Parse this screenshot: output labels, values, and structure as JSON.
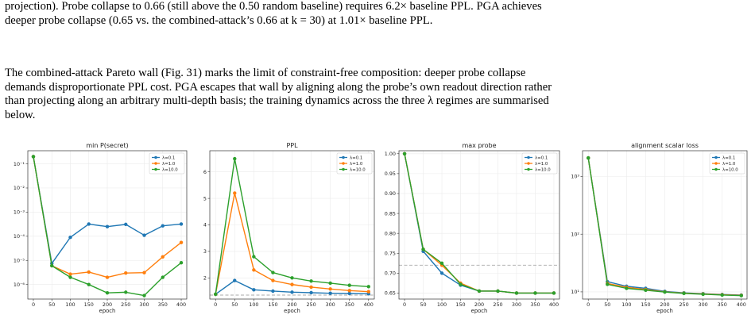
{
  "paragraph1": {
    "line1": "projection). Probe collapse to 0.66 (still above the 0.50 random baseline) requires 6.2× baseline PPL. PGA achieves",
    "line2": "deeper probe collapse (0.65 vs. the combined-attack’s 0.66 at k = 30) at 1.01× baseline PPL."
  },
  "paragraph2": {
    "line1": "The combined-attack Pareto wall (Fig. 31) marks the limit of constraint-free composition: deeper probe collapse",
    "line2": "demands disproportionate PPL cost. PGA escapes that wall by aligning along the probe’s own readout direction rather",
    "line3": "than projecting along an arbitrary multi-depth basis; the training dynamics across the three λ regimes are summarised",
    "line4": "below."
  },
  "colors": {
    "lambda_0_1": "#1f77b4",
    "lambda_1_0": "#ff7f0e",
    "lambda_10_0": "#2ca02c",
    "threshold": "#aaaaaa"
  },
  "chart_data": [
    {
      "type": "line",
      "title": "min P(secret)",
      "xlabel": "epoch",
      "ylabel": "",
      "yscale": "log",
      "xlim": [
        -15,
        415
      ],
      "ylim": [
        2.5e-07,
        0.35
      ],
      "xticks": [
        0,
        50,
        100,
        150,
        200,
        250,
        300,
        350,
        400
      ],
      "yticks": [
        1e-06,
        1e-05,
        0.0001,
        0.001,
        0.01,
        0.1
      ],
      "ytick_labels": [
        "10⁻⁶",
        "10⁻⁵",
        "10⁻⁴",
        "10⁻³",
        "10⁻²",
        "10⁻¹"
      ],
      "legend": "top-right",
      "grid": true,
      "x": [
        0,
        50,
        100,
        150,
        200,
        250,
        300,
        350,
        400
      ],
      "series": [
        {
          "name": "λ=0.1",
          "values": [
            0.2,
            7.5e-06,
            9e-05,
            0.00032,
            0.00025,
            0.00031,
            0.00011,
            0.00027,
            0.00032
          ]
        },
        {
          "name": "λ=1.0",
          "values": [
            0.2,
            6e-06,
            2.7e-06,
            3.3e-06,
            2e-06,
            3e-06,
            3.1e-06,
            1.4e-05,
            5.5e-05
          ]
        },
        {
          "name": "λ=10.0",
          "values": [
            0.2,
            6e-06,
            2e-06,
            1e-06,
            4.5e-07,
            4.8e-07,
            3.5e-07,
            2e-06,
            8e-06
          ]
        }
      ]
    },
    {
      "type": "line",
      "title": "PPL",
      "xlabel": "epoch",
      "ylabel": "",
      "yscale": "linear",
      "xlim": [
        -15,
        415
      ],
      "ylim": [
        1.2,
        6.8
      ],
      "xticks": [
        0,
        50,
        100,
        150,
        200,
        250,
        300,
        350,
        400
      ],
      "yticks": [
        2,
        3,
        4,
        5,
        6
      ],
      "ytick_labels": [
        "2",
        "3",
        "4",
        "5",
        "6"
      ],
      "hline": 1.35,
      "legend": "top-right",
      "grid": true,
      "x": [
        0,
        50,
        100,
        150,
        200,
        250,
        300,
        350,
        400
      ],
      "series": [
        {
          "name": "λ=0.1",
          "values": [
            1.38,
            1.9,
            1.55,
            1.5,
            1.46,
            1.44,
            1.42,
            1.41,
            1.4
          ]
        },
        {
          "name": "λ=1.0",
          "values": [
            1.38,
            5.2,
            2.3,
            1.9,
            1.75,
            1.65,
            1.58,
            1.52,
            1.48
          ]
        },
        {
          "name": "λ=10.0",
          "values": [
            1.38,
            6.5,
            2.8,
            2.2,
            2.0,
            1.88,
            1.8,
            1.72,
            1.67
          ]
        }
      ]
    },
    {
      "type": "line",
      "title": "max probe",
      "xlabel": "epoch",
      "ylabel": "",
      "yscale": "linear",
      "xlim": [
        -15,
        415
      ],
      "ylim": [
        0.635,
        1.0075
      ],
      "xticks": [
        0,
        50,
        100,
        150,
        200,
        250,
        300,
        350,
        400
      ],
      "yticks": [
        0.65,
        0.7,
        0.75,
        0.8,
        0.85,
        0.9,
        0.95,
        1.0
      ],
      "ytick_labels": [
        "0.65",
        "0.70",
        "0.75",
        "0.80",
        "0.85",
        "0.90",
        "0.95",
        "1.00"
      ],
      "hline": 0.72,
      "legend": "top-right",
      "grid": true,
      "x": [
        0,
        50,
        100,
        150,
        200,
        250,
        300,
        350,
        400
      ],
      "series": [
        {
          "name": "λ=0.1",
          "values": [
            1.0,
            0.755,
            0.7,
            0.67,
            0.655,
            0.655,
            0.65,
            0.65,
            0.65
          ]
        },
        {
          "name": "λ=1.0",
          "values": [
            1.0,
            0.76,
            0.72,
            0.675,
            0.655,
            0.655,
            0.65,
            0.65,
            0.65
          ]
        },
        {
          "name": "λ=10.0",
          "values": [
            1.0,
            0.76,
            0.725,
            0.672,
            0.655,
            0.655,
            0.65,
            0.65,
            0.65
          ]
        }
      ]
    },
    {
      "type": "line",
      "title": "alignment scalar loss",
      "xlabel": "epoch",
      "ylabel": "",
      "yscale": "log",
      "xlim": [
        -15,
        415
      ],
      "ylim": [
        7.5,
        2800
      ],
      "xticks": [
        0,
        50,
        100,
        150,
        200,
        250,
        300,
        350,
        400
      ],
      "yticks": [
        10,
        100,
        1000
      ],
      "ytick_labels": [
        "10¹",
        "10²",
        "10³"
      ],
      "legend": "top-right",
      "grid": true,
      "x": [
        0,
        50,
        100,
        150,
        200,
        250,
        300,
        350,
        400
      ],
      "series": [
        {
          "name": "λ=0.1",
          "values": [
            2100,
            15,
            12.5,
            11.5,
            10.2,
            9.6,
            9.3,
            9.0,
            8.8
          ]
        },
        {
          "name": "λ=1.0",
          "values": [
            2100,
            14,
            12,
            11,
            10,
            9.5,
            9.2,
            8.9,
            8.7
          ]
        },
        {
          "name": "λ=10.0",
          "values": [
            2100,
            13.5,
            11.5,
            10.7,
            9.9,
            9.4,
            9.1,
            8.8,
            8.6
          ]
        }
      ]
    }
  ]
}
